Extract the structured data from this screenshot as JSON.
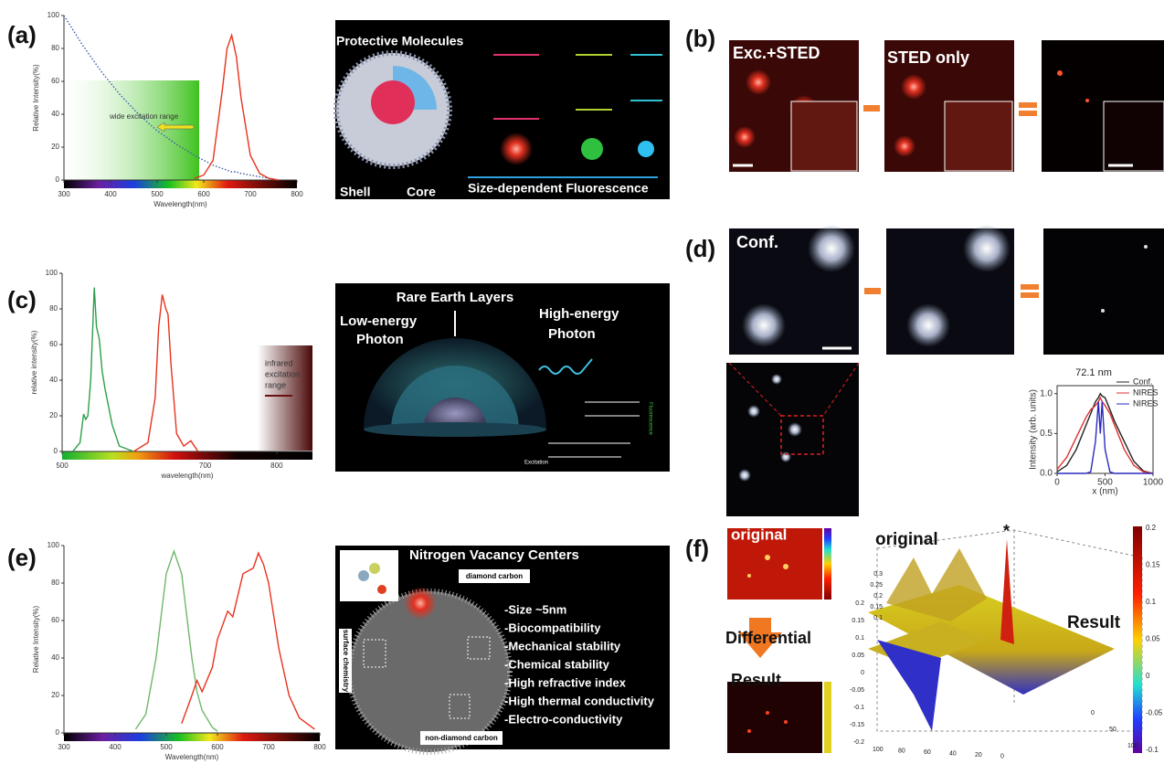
{
  "chart_data": [
    {
      "type": "line",
      "ylabel": "Relative Intensity(%)",
      "xlabel": "Wavelength(nm)",
      "x": [
        300,
        340,
        380,
        420,
        460,
        500,
        540,
        580,
        600,
        620,
        640,
        650,
        660,
        670,
        680,
        700,
        720,
        740,
        760
      ],
      "series": [
        {
          "color": "#3a5fa8",
          "style": "dotted",
          "values": [
            100,
            82,
            66,
            52,
            40,
            30,
            22,
            15,
            12,
            9,
            7,
            6,
            5,
            5,
            4,
            3,
            2,
            1,
            0
          ]
        },
        {
          "color": "#e8321e",
          "values": [
            null,
            null,
            null,
            null,
            null,
            null,
            null,
            1,
            3,
            12,
            55,
            80,
            88,
            75,
            50,
            15,
            4,
            1,
            0
          ]
        }
      ],
      "xlim": [
        300,
        800
      ],
      "ylim": [
        0,
        100
      ],
      "xticks": [
        300,
        400,
        500,
        600,
        700,
        800
      ],
      "yticks": [
        0,
        20,
        40,
        60,
        80,
        100
      ],
      "annotations": [
        "wide excitation range"
      ]
    },
    {
      "type": "line",
      "ylabel": "relative intensity(%)",
      "xlabel": "wavelength(nm)",
      "x": [
        515,
        525,
        530,
        533,
        536,
        540,
        545,
        548,
        552,
        556,
        560,
        570,
        580,
        600,
        620,
        630,
        635,
        640,
        645,
        648,
        652,
        660,
        670,
        680,
        690
      ],
      "series": [
        {
          "color": "#2e9e4a",
          "values": [
            0,
            5,
            21,
            18,
            20,
            40,
            92,
            70,
            63,
            45,
            35,
            15,
            3,
            0,
            null,
            null,
            null,
            null,
            null,
            null,
            null,
            null,
            null,
            null,
            null
          ]
        },
        {
          "color": "#e8321e",
          "values": [
            null,
            null,
            null,
            null,
            null,
            null,
            null,
            null,
            null,
            null,
            null,
            null,
            null,
            0,
            5,
            30,
            70,
            88,
            80,
            77,
            50,
            10,
            3,
            6,
            0
          ]
        }
      ],
      "xlim": [
        500,
        850
      ],
      "ylim": [
        0,
        100
      ],
      "xticks": [
        500,
        700,
        800
      ],
      "yticks": [
        0,
        20,
        40,
        60,
        80,
        100
      ],
      "annotations": [
        "infrared",
        "excitation",
        "range"
      ]
    },
    {
      "type": "line",
      "ylabel": "Relative Intensity(%)",
      "xlabel": "Wavelength(nm)",
      "x": [
        440,
        460,
        480,
        500,
        515,
        530,
        550,
        560,
        570,
        590,
        600,
        620,
        630,
        650,
        670,
        680,
        690,
        700,
        720,
        740,
        760,
        790
      ],
      "series": [
        {
          "color": "#6fb86a",
          "values": [
            2,
            10,
            40,
            85,
            97,
            85,
            40,
            22,
            12,
            3,
            1,
            null,
            null,
            null,
            null,
            null,
            null,
            null,
            null,
            null,
            null,
            null
          ]
        },
        {
          "color": "#e8321e",
          "values": [
            null,
            null,
            null,
            null,
            null,
            5,
            20,
            28,
            22,
            35,
            50,
            65,
            62,
            85,
            88,
            96,
            90,
            80,
            45,
            20,
            8,
            2
          ]
        }
      ],
      "xlim": [
        300,
        800
      ],
      "ylim": [
        0,
        100
      ],
      "xticks": [
        300,
        400,
        500,
        600,
        700,
        800
      ],
      "yticks": [
        0,
        20,
        40,
        60,
        80,
        100
      ]
    },
    {
      "type": "line",
      "ylabel": "Intensity (arb. units)",
      "xlabel": "x (nm)",
      "x": [
        0,
        100,
        200,
        300,
        350,
        400,
        430,
        450,
        470,
        500,
        550,
        600,
        700,
        800,
        900,
        1000
      ],
      "series": [
        {
          "name": "Conf.",
          "color": "#222222",
          "values": [
            0.02,
            0.1,
            0.3,
            0.6,
            0.75,
            0.9,
            0.95,
            1.0,
            0.97,
            0.95,
            0.8,
            0.65,
            0.4,
            0.15,
            0.03,
            0.0
          ]
        },
        {
          "name": "NIRES",
          "color": "#e03030",
          "values": [
            0.05,
            0.2,
            0.45,
            0.7,
            0.8,
            0.85,
            0.9,
            0.95,
            0.9,
            0.85,
            0.75,
            0.6,
            0.3,
            0.1,
            0.02,
            0.0
          ]
        },
        {
          "name": "NIRES",
          "color": "#2a2ac0",
          "values": [
            0,
            0,
            0,
            0,
            0.02,
            0.4,
            0.9,
            0.5,
            0.9,
            0.3,
            0.02,
            0,
            0,
            0,
            0,
            0
          ]
        }
      ],
      "xlim": [
        0,
        1000
      ],
      "ylim": [
        0,
        1.1
      ],
      "xticks": [
        0,
        500,
        1000
      ],
      "yticks": [
        {
          "value": 0,
          "label": "0.0"
        },
        {
          "value": 0.5,
          "label": "0.5"
        },
        {
          "value": 1,
          "label": "1.0"
        }
      ],
      "annotations": [
        "72.1 nm"
      ],
      "legend": "upper right"
    }
  ],
  "figure": {
    "panel_labels": [
      "(a)",
      "(b)",
      "(c)",
      "(d)",
      "(e)",
      "(f)"
    ],
    "a": {
      "protective": "Protective Molecules",
      "shell": "Shell",
      "core": "Core",
      "caption": "Size-dependent Fluorescence"
    },
    "b": {
      "left": "Exc.+STED",
      "middle": "STED only"
    },
    "c": {
      "layers": "Rare Earth Layers",
      "low": [
        "Low-energy",
        "Photon"
      ],
      "high": [
        "High-energy",
        "Photon"
      ],
      "excitation": "Excitation",
      "fluorescence": "Fluorescence"
    },
    "d": {
      "conf": "Conf."
    },
    "e": {
      "title": "Nitrogen Vacancy Centers",
      "diamond": "diamond carbon",
      "surface": "surface chemistry",
      "non_diamond": "non-diamond carbon",
      "items": [
        "-Size ~5nm",
        "-Biocompatibility",
        "-Mechanical stability",
        "-Chemical stability",
        "-High refractive index",
        "-High thermal conductivity",
        "-Electro-conductivity"
      ]
    },
    "f": {
      "original": "original",
      "differential": "Differential",
      "result": "Result",
      "surface_original": "original",
      "surface_result": "Result",
      "star": "*",
      "colorbar_ticks": [
        "0.2",
        "0.15",
        "0.1",
        "0.05",
        "0",
        "-0.05",
        "-0.1"
      ],
      "z_ticks": [
        "0.2",
        "0.15",
        "0.1",
        "0.05",
        "0",
        "-0.05",
        "-0.1",
        "-0.15",
        "-0.2"
      ],
      "inset_ticks": [
        "0.3",
        "0.25",
        "0.2",
        "0.15",
        "0.1"
      ],
      "x_ticks": [
        "100",
        "80",
        "60",
        "40",
        "20",
        "0"
      ],
      "y_ticks": [
        "0",
        "50",
        "100"
      ]
    }
  }
}
